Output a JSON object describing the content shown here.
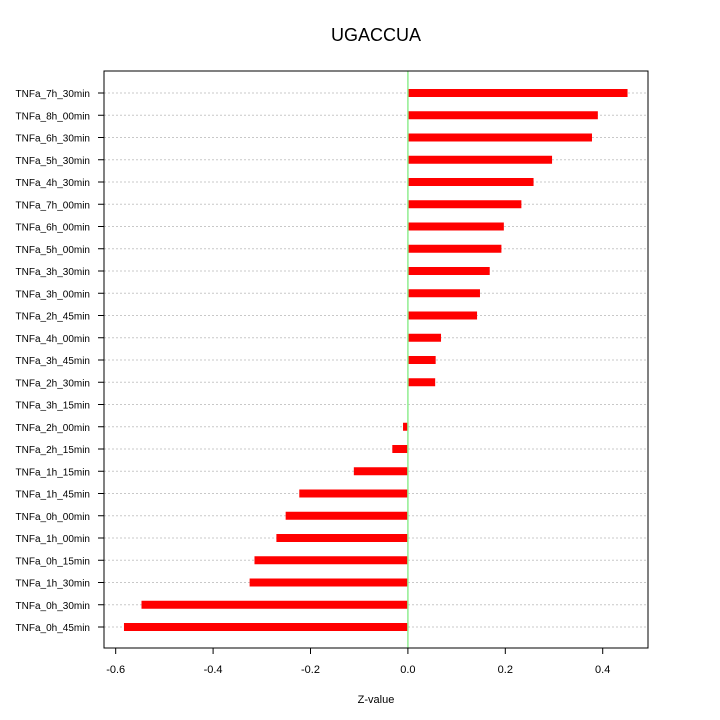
{
  "chart_data": {
    "type": "bar",
    "orientation": "horizontal",
    "title": "UGACCUA",
    "xlabel": "Z-value",
    "ylabel": "",
    "xlim": [
      -0.624,
      0.493
    ],
    "xticks": [
      -0.6,
      -0.4,
      -0.2,
      0.0,
      0.2,
      0.4
    ],
    "xtick_labels": [
      "-0.6",
      "-0.4",
      "-0.2",
      "0.0",
      "0.2",
      "0.4"
    ],
    "grid": true,
    "reference_line": {
      "x": 0,
      "color": "#90ee90"
    },
    "bar_color": "#ff0000",
    "categories": [
      "TNFa_7h_30min",
      "TNFa_8h_00min",
      "TNFa_6h_30min",
      "TNFa_5h_30min",
      "TNFa_4h_30min",
      "TNFa_7h_00min",
      "TNFa_6h_00min",
      "TNFa_5h_00min",
      "TNFa_3h_30min",
      "TNFa_3h_00min",
      "TNFa_2h_45min",
      "TNFa_4h_00min",
      "TNFa_3h_45min",
      "TNFa_2h_30min",
      "TNFa_3h_15min",
      "TNFa_2h_00min",
      "TNFa_2h_15min",
      "TNFa_1h_15min",
      "TNFa_1h_45min",
      "TNFa_0h_00min",
      "TNFa_1h_00min",
      "TNFa_0h_15min",
      "TNFa_1h_30min",
      "TNFa_0h_30min",
      "TNFa_0h_45min"
    ],
    "values": [
      0.451,
      0.39,
      0.378,
      0.296,
      0.258,
      0.233,
      0.197,
      0.192,
      0.168,
      0.148,
      0.142,
      0.068,
      0.057,
      0.056,
      0.001,
      -0.01,
      -0.032,
      -0.111,
      -0.223,
      -0.251,
      -0.27,
      -0.315,
      -0.325,
      -0.547,
      -0.583
    ]
  }
}
